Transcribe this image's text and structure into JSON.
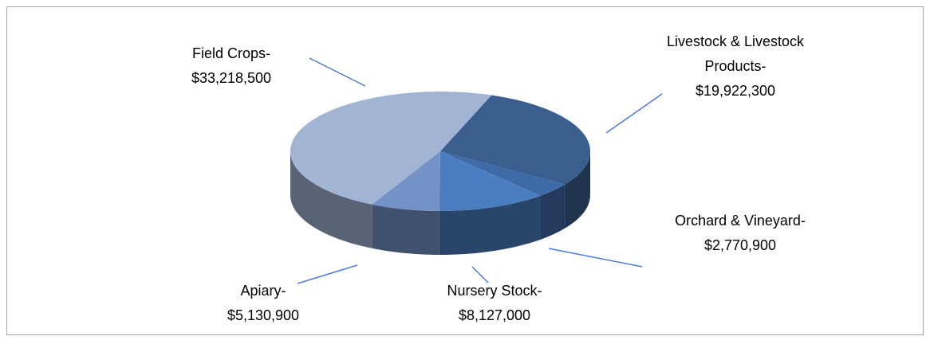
{
  "chart_data": {
    "type": "pie3d",
    "categories": [
      "Field Crops-",
      "Livestock & Livestock Products-",
      "Orchard & Vineyard-",
      "Nursery Stock-",
      "Apiary-"
    ],
    "values": [
      33218500,
      19922300,
      2770900,
      8127000,
      5130900
    ],
    "value_labels": [
      "$33,218,500",
      "$19,922,300",
      "$2,770,900",
      "$8,127,000",
      "$5,130,900"
    ],
    "colors": [
      "#a2b4d4",
      "#3a5f8f",
      "#3f6aa8",
      "#4a7ec0",
      "#7393c8"
    ]
  }
}
